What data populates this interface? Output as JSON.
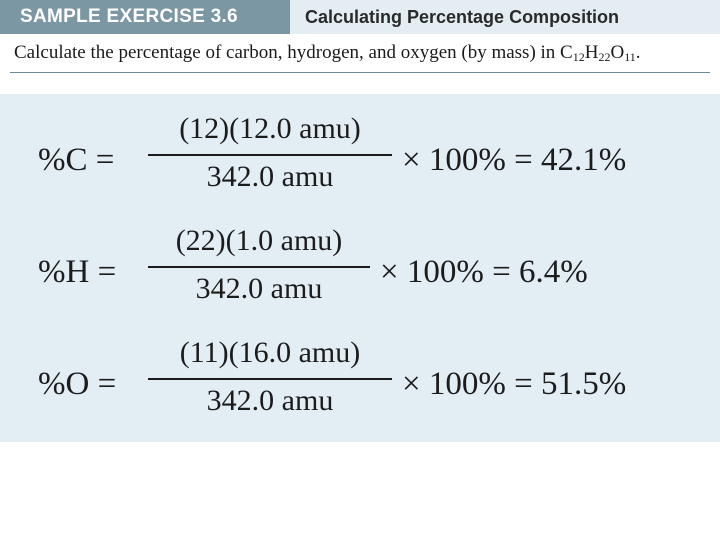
{
  "header": {
    "tab_label": "SAMPLE EXERCISE 3.6",
    "title": "Calculating Percentage Composition"
  },
  "problem": {
    "text_before": "Calculate the percentage of carbon, hydrogen, and oxygen (by mass) in C",
    "c_sub": "12",
    "h": "H",
    "h_sub": "22",
    "o": "O",
    "o_sub": "11",
    "end": "."
  },
  "equations": [
    {
      "lhs": "%C =",
      "numerator": "(12)(12.0 amu)",
      "denominator": "342.0 amu",
      "rhs": "× 100% = 42.1%"
    },
    {
      "lhs": "%H =",
      "numerator": "(22)(1.0 amu)",
      "denominator": "342.0 amu",
      "rhs": "× 100% = 6.4%"
    },
    {
      "lhs": "%O =",
      "numerator": "(11)(16.0 amu)",
      "denominator": "342.0 amu",
      "rhs": "× 100% = 51.5%"
    }
  ],
  "colors": {
    "tab_background": "#7b97a3",
    "header_background": "#e4edf2",
    "panel_background": "#e3edf4"
  }
}
